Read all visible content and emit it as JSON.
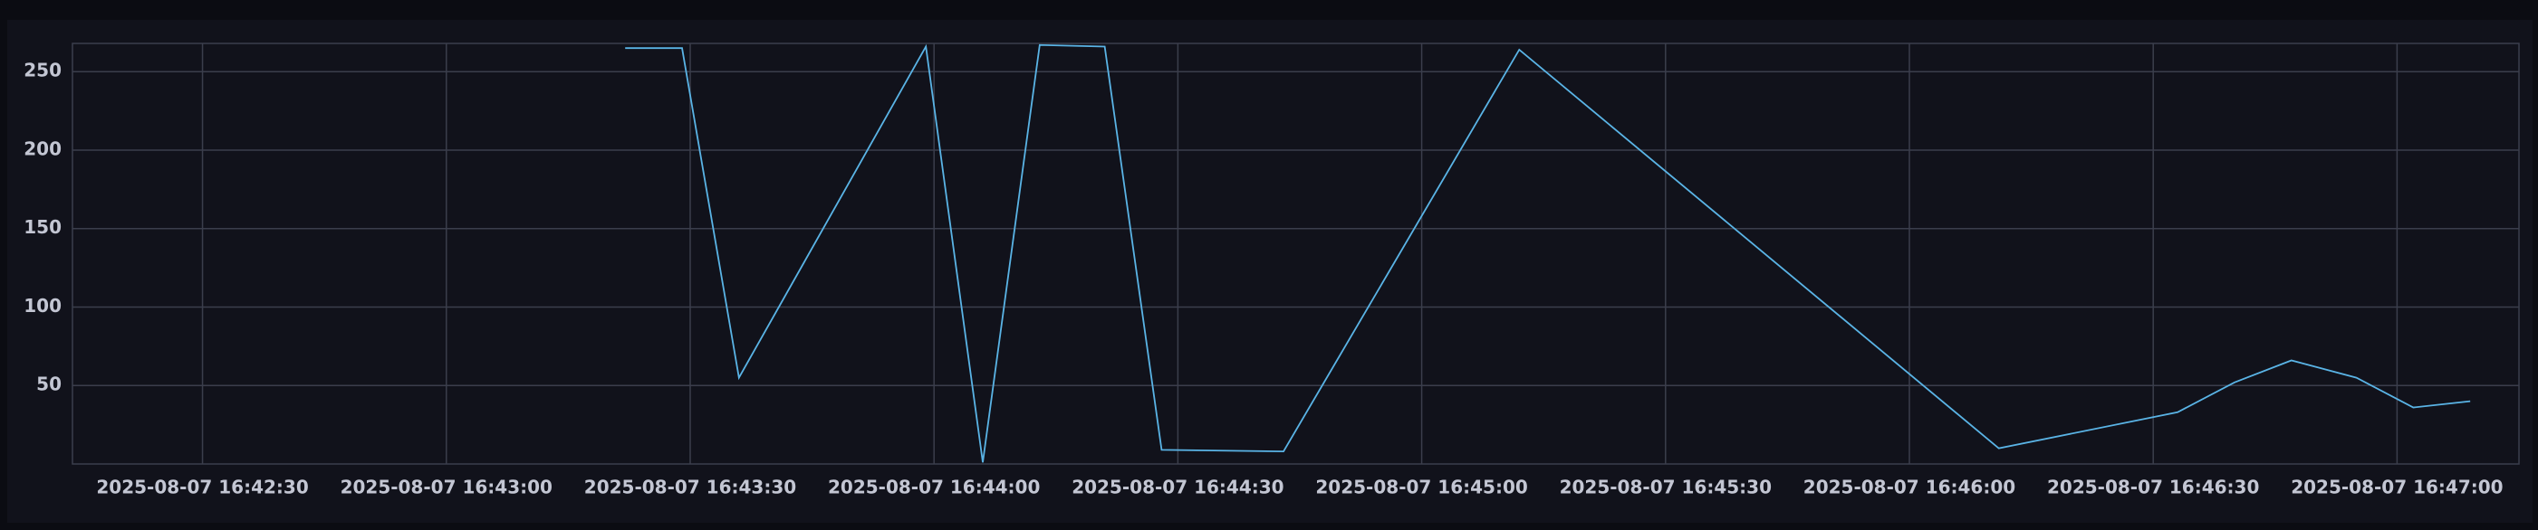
{
  "chart_data": {
    "type": "line",
    "x": [
      "2025-08-07 16:43:22",
      "2025-08-07 16:43:29",
      "2025-08-07 16:43:36",
      "2025-08-07 16:43:59",
      "2025-08-07 16:44:06",
      "2025-08-07 16:44:13",
      "2025-08-07 16:44:21",
      "2025-08-07 16:44:28",
      "2025-08-07 16:44:43",
      "2025-08-07 16:45:12",
      "2025-08-07 16:46:11",
      "2025-08-07 16:46:33",
      "2025-08-07 16:46:40",
      "2025-08-07 16:46:47",
      "2025-08-07 16:46:55",
      "2025-08-07 16:47:02",
      "2025-08-07 16:47:09"
    ],
    "values": [
      265,
      265,
      55,
      266,
      1,
      267,
      266,
      9,
      8,
      264,
      10,
      33,
      52,
      66,
      55,
      36,
      40
    ],
    "color": "#5ab4e6",
    "xlim": [
      "2025-08-07 16:42:14",
      "2025-08-07 16:47:15"
    ],
    "xticks": [
      "2025-08-07 16:42:30",
      "2025-08-07 16:43:00",
      "2025-08-07 16:43:30",
      "2025-08-07 16:44:00",
      "2025-08-07 16:44:30",
      "2025-08-07 16:45:00",
      "2025-08-07 16:45:30",
      "2025-08-07 16:46:00",
      "2025-08-07 16:46:30",
      "2025-08-07 16:47:00"
    ],
    "ylim": [
      0,
      268
    ],
    "yticks": [
      50,
      100,
      150,
      200,
      250
    ],
    "grid": true
  }
}
